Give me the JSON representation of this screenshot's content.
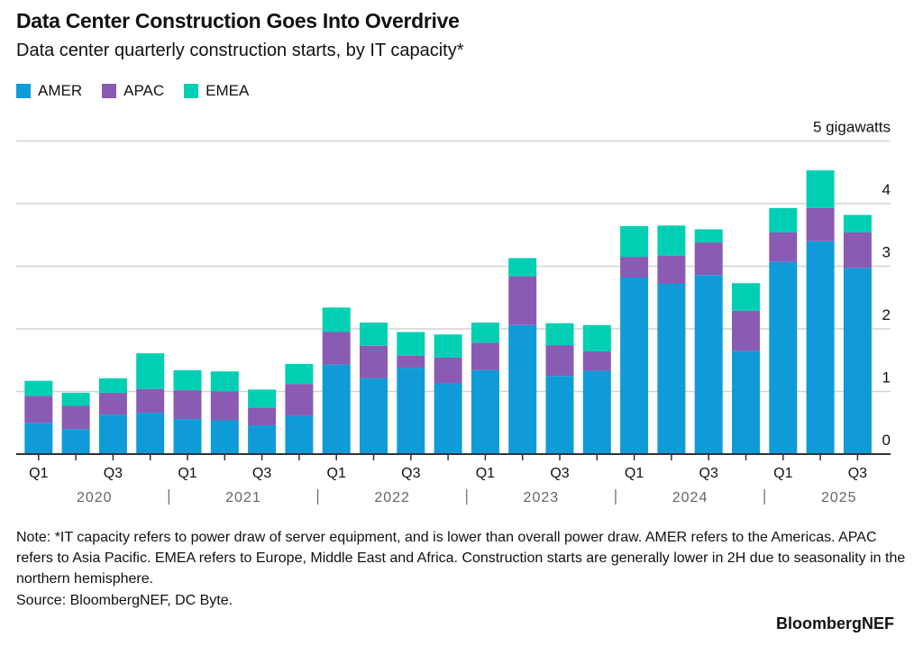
{
  "title": "Data Center Construction Goes Into Overdrive",
  "subtitle": "Data center quarterly construction starts, by IT capacity*",
  "note": "Note: *IT capacity refers to power draw of server equipment, and is lower than overall power draw. AMER refers to the Americas. APAC refers to Asia Pacific. EMEA refers to Europe, Middle East and Africa. Construction starts are generally lower in 2H due to seasonality in the northern hemisphere.",
  "source": "Source: BloombergNEF, DC Byte.",
  "brand": "BloombergNEF",
  "chart_data": {
    "type": "bar",
    "stacked": true,
    "title": "Data Center Construction Goes Into Overdrive",
    "ylabel": "",
    "yunit_label": "5 gigawatts",
    "ylim": [
      0,
      5
    ],
    "yticks": [
      "0",
      "1",
      "2",
      "3",
      "4"
    ],
    "grid": true,
    "legend": "top-left",
    "x_tick_labels": [
      "Q1",
      "",
      "Q3",
      "",
      "Q1",
      "",
      "Q3",
      "",
      "Q1",
      "",
      "Q3",
      "",
      "Q1",
      "",
      "Q3",
      "",
      "Q1",
      "",
      "Q3",
      "",
      "Q1",
      "",
      "Q3"
    ],
    "years": [
      "2020",
      "2021",
      "2022",
      "2023",
      "2024",
      "2025"
    ],
    "categories": [
      "2020 Q1",
      "2020 Q2",
      "2020 Q3",
      "2020 Q4",
      "2021 Q1",
      "2021 Q2",
      "2021 Q3",
      "2021 Q4",
      "2022 Q1",
      "2022 Q2",
      "2022 Q3",
      "2022 Q4",
      "2023 Q1",
      "2023 Q2",
      "2023 Q3",
      "2023 Q4",
      "2024 Q1",
      "2024 Q2",
      "2024 Q3",
      "2024 Q4",
      "2025 Q1",
      "2025 Q2",
      "2025 Q3"
    ],
    "series": [
      {
        "name": "AMER",
        "color": "#0f9bd8",
        "values": [
          0.5,
          0.4,
          0.63,
          0.66,
          0.56,
          0.54,
          0.46,
          0.61,
          1.43,
          1.21,
          1.38,
          1.13,
          1.34,
          2.06,
          1.25,
          1.33,
          2.82,
          2.72,
          2.86,
          1.65,
          3.07,
          3.4,
          2.97
        ]
      },
      {
        "name": "APAC",
        "color": "#8a5bb2",
        "values": [
          0.43,
          0.37,
          0.35,
          0.38,
          0.46,
          0.46,
          0.28,
          0.51,
          0.52,
          0.52,
          0.19,
          0.41,
          0.44,
          0.78,
          0.49,
          0.31,
          0.33,
          0.45,
          0.52,
          0.64,
          0.47,
          0.53,
          0.57
        ]
      },
      {
        "name": "EMEA",
        "color": "#00cfb3",
        "values": [
          0.24,
          0.21,
          0.23,
          0.57,
          0.32,
          0.32,
          0.29,
          0.32,
          0.39,
          0.37,
          0.38,
          0.37,
          0.32,
          0.29,
          0.35,
          0.42,
          0.49,
          0.48,
          0.21,
          0.44,
          0.39,
          0.6,
          0.28
        ]
      }
    ]
  }
}
